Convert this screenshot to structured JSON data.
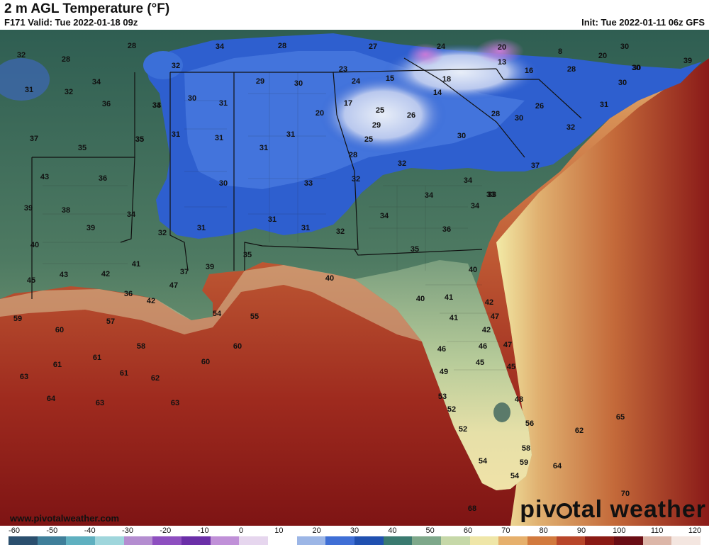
{
  "header": {
    "title": "2 m AGL Temperature (°F)",
    "valid": "F171 Valid: Tue 2022-01-18 09z",
    "init": "Init: Tue 2022-01-11 06z GFS"
  },
  "footer": {
    "site": "www.pivotalweather.com",
    "brand_pre": "piv",
    "brand_post": "tal weather"
  },
  "colorbar": {
    "ticks": [
      "-60",
      "-50",
      "-40",
      "-30",
      "-20",
      "-10",
      "0",
      "10",
      "20",
      "30",
      "40",
      "50",
      "60",
      "70",
      "80",
      "90",
      "100",
      "110",
      "120"
    ],
    "colors": [
      "#2b4f6e",
      "#3f7f9a",
      "#5fb0c0",
      "#9fd6dc",
      "#b48dd0",
      "#8e4fc0",
      "#6b2fa8",
      "#c090d8",
      "#e6d6ee",
      "#ffffff",
      "#9cb6e6",
      "#3f6fd6",
      "#2050b0",
      "#3a7a70",
      "#7ea88a",
      "#c6d8a8",
      "#efe6a8",
      "#e6b06c",
      "#d27a3e",
      "#b8462a",
      "#8a1a14",
      "#6a0d14",
      "#dcb6a8",
      "#f4e6e0"
    ]
  },
  "temperatures": [
    {
      "v": "32"
    },
    {
      "v": "28"
    },
    {
      "v": "28"
    },
    {
      "v": "32"
    },
    {
      "v": "34"
    },
    {
      "v": "28"
    },
    {
      "v": "27"
    },
    {
      "v": "24"
    },
    {
      "v": "20"
    },
    {
      "v": "8"
    },
    {
      "v": "20"
    },
    {
      "v": "30"
    },
    {
      "v": "30"
    },
    {
      "v": "39"
    },
    {
      "v": "31"
    },
    {
      "v": "32"
    },
    {
      "v": "34"
    },
    {
      "v": "34"
    },
    {
      "v": "23"
    },
    {
      "v": "13"
    },
    {
      "v": "16"
    },
    {
      "v": "28"
    },
    {
      "v": "30"
    },
    {
      "v": "30"
    },
    {
      "v": "36"
    },
    {
      "v": "33"
    },
    {
      "v": "30"
    },
    {
      "v": "31"
    },
    {
      "v": "29"
    },
    {
      "v": "30"
    },
    {
      "v": "24"
    },
    {
      "v": "15"
    },
    {
      "v": "18"
    },
    {
      "v": "14"
    },
    {
      "v": "17"
    },
    {
      "v": "25"
    },
    {
      "v": "26"
    },
    {
      "v": "20"
    },
    {
      "v": "28"
    },
    {
      "v": "30"
    },
    {
      "v": "26"
    },
    {
      "v": "31"
    },
    {
      "v": "37"
    },
    {
      "v": "35"
    },
    {
      "v": "31"
    },
    {
      "v": "31"
    },
    {
      "v": "31"
    },
    {
      "v": "29"
    },
    {
      "v": "25"
    },
    {
      "v": "30"
    },
    {
      "v": "32"
    },
    {
      "v": "35"
    },
    {
      "v": "31"
    },
    {
      "v": "28"
    },
    {
      "v": "32"
    },
    {
      "v": "37"
    },
    {
      "v": "43"
    },
    {
      "v": "36"
    },
    {
      "v": "35"
    },
    {
      "v": "30"
    },
    {
      "v": "33"
    },
    {
      "v": "32"
    },
    {
      "v": "34"
    },
    {
      "v": "33"
    },
    {
      "v": "33"
    },
    {
      "v": "39"
    },
    {
      "v": "38"
    },
    {
      "v": "34"
    },
    {
      "v": "31"
    },
    {
      "v": "31"
    },
    {
      "v": "34"
    },
    {
      "v": "34"
    },
    {
      "v": "39"
    },
    {
      "v": "32"
    },
    {
      "v": "31"
    },
    {
      "v": "32"
    },
    {
      "v": "34"
    },
    {
      "v": "36"
    },
    {
      "v": "40"
    },
    {
      "v": "36"
    },
    {
      "v": "35"
    },
    {
      "v": "41"
    },
    {
      "v": "37"
    },
    {
      "v": "39"
    },
    {
      "v": "35"
    },
    {
      "v": "40"
    },
    {
      "v": "43"
    },
    {
      "v": "42"
    },
    {
      "v": "47"
    },
    {
      "v": "40"
    },
    {
      "v": "45"
    },
    {
      "v": "42"
    },
    {
      "v": "40"
    },
    {
      "v": "41"
    },
    {
      "v": "42"
    },
    {
      "v": "59"
    },
    {
      "v": "57"
    },
    {
      "v": "54"
    },
    {
      "v": "55"
    },
    {
      "v": "41"
    },
    {
      "v": "47"
    },
    {
      "v": "60"
    },
    {
      "v": "42"
    },
    {
      "v": "58"
    },
    {
      "v": "60"
    },
    {
      "v": "46"
    },
    {
      "v": "46"
    },
    {
      "v": "47"
    },
    {
      "v": "61"
    },
    {
      "v": "61"
    },
    {
      "v": "60"
    },
    {
      "v": "45"
    },
    {
      "v": "45"
    },
    {
      "v": "63"
    },
    {
      "v": "61"
    },
    {
      "v": "62"
    },
    {
      "v": "49"
    },
    {
      "v": "53"
    },
    {
      "v": "48"
    },
    {
      "v": "64"
    },
    {
      "v": "63"
    },
    {
      "v": "63"
    },
    {
      "v": "52"
    },
    {
      "v": "52"
    },
    {
      "v": "56"
    },
    {
      "v": "62"
    },
    {
      "v": "65"
    },
    {
      "v": "58"
    },
    {
      "v": "54"
    },
    {
      "v": "59"
    },
    {
      "v": "64"
    },
    {
      "v": "54"
    },
    {
      "v": "70"
    },
    {
      "v": "68"
    }
  ]
}
